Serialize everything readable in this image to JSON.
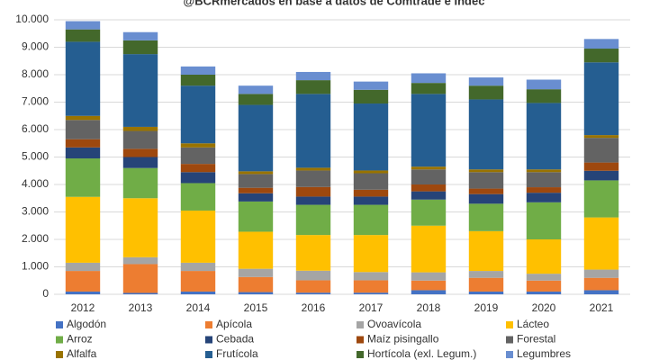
{
  "chart_data": {
    "type": "stacked_bar",
    "title": "@BCRmercados en base a datos de Comtrade e Indec",
    "categories": [
      "2012",
      "2013",
      "2014",
      "2015",
      "2016",
      "2017",
      "2018",
      "2019",
      "2020",
      "2021"
    ],
    "ylim": [
      0,
      10000
    ],
    "yticks": [
      0,
      {
        "value": 1000,
        "label": "1.000"
      },
      {
        "value": 2000,
        "label": "2.000"
      },
      {
        "value": 3000,
        "label": "3.000"
      },
      {
        "value": 4000,
        "label": "4.000"
      },
      {
        "value": 5000,
        "label": "5.000"
      },
      {
        "value": 6000,
        "label": "6.000"
      },
      {
        "value": 7000,
        "label": "7.000"
      },
      {
        "value": 8000,
        "label": "8.000"
      },
      {
        "value": 9000,
        "label": "9.000"
      },
      {
        "value": 10000,
        "label": "10.000"
      }
    ],
    "grid": true,
    "series": [
      {
        "name": "Algodón",
        "color": "#4472c4",
        "values": [
          100,
          50,
          100,
          80,
          60,
          60,
          150,
          100,
          100,
          150
        ]
      },
      {
        "name": "Apícola",
        "color": "#ed7d31",
        "values": [
          750,
          1050,
          750,
          550,
          450,
          450,
          350,
          500,
          400,
          450
        ]
      },
      {
        "name": "Ovoavícola",
        "color": "#a5a5a5",
        "values": [
          300,
          250,
          300,
          300,
          350,
          300,
          300,
          250,
          250,
          300
        ]
      },
      {
        "name": "Lácteo",
        "color": "#ffc000",
        "values": [
          2400,
          2150,
          1900,
          1350,
          1300,
          1350,
          1700,
          1450,
          1250,
          1900
        ]
      },
      {
        "name": "Arroz",
        "color": "#70ad47",
        "values": [
          1400,
          1100,
          1000,
          1100,
          1100,
          1100,
          950,
          1000,
          1350,
          1350
        ]
      },
      {
        "name": "Cebada",
        "color": "#264478",
        "values": [
          400,
          400,
          400,
          300,
          300,
          300,
          300,
          350,
          350,
          350
        ]
      },
      {
        "name": "Maíz pisingallo",
        "color": "#9e480e",
        "values": [
          300,
          300,
          300,
          200,
          350,
          250,
          250,
          200,
          200,
          300
        ]
      },
      {
        "name": "Forestal",
        "color": "#636363",
        "values": [
          700,
          650,
          600,
          500,
          600,
          600,
          550,
          600,
          550,
          900
        ]
      },
      {
        "name": "Alfalfa",
        "color": "#997300",
        "values": [
          150,
          150,
          150,
          100,
          100,
          100,
          100,
          100,
          100,
          100
        ]
      },
      {
        "name": "Frutícola",
        "color": "#255e91",
        "values": [
          2700,
          2650,
          2100,
          2420,
          2690,
          2440,
          2650,
          2550,
          2420,
          2650
        ]
      },
      {
        "name": "Hortícola (exl. Legum.)",
        "color": "#43682b",
        "values": [
          450,
          500,
          400,
          400,
          500,
          500,
          400,
          500,
          500,
          500
        ]
      },
      {
        "name": "Legumbres",
        "color": "#698ed0",
        "values": [
          300,
          300,
          300,
          300,
          300,
          300,
          350,
          300,
          350,
          350
        ]
      }
    ]
  }
}
